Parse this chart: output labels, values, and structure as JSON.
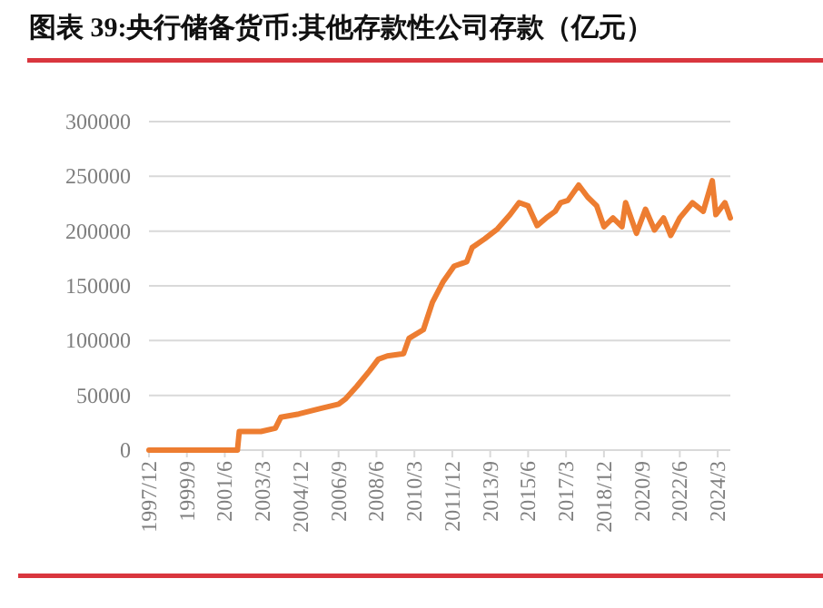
{
  "chart_data": {
    "type": "line",
    "title": "图表 39:央行储备货币:其他存款性公司存款（亿元）",
    "x": [
      "1997-12",
      "2002-01",
      "2002-02",
      "2003-02",
      "2003-10",
      "2004-01",
      "2004-11",
      "2005-11",
      "2006-09",
      "2007-01",
      "2007-07",
      "2008-02",
      "2008-07",
      "2008-12",
      "2009-09",
      "2009-12",
      "2010-08",
      "2011-01",
      "2011-07",
      "2012-01",
      "2012-08",
      "2012-11",
      "2013-06",
      "2014-01",
      "2014-08",
      "2015-01",
      "2015-06",
      "2015-11",
      "2016-04",
      "2016-09",
      "2016-12",
      "2017-04",
      "2017-10",
      "2018-03",
      "2018-08",
      "2018-12",
      "2019-05",
      "2019-10",
      "2019-12",
      "2020-06",
      "2020-11",
      "2021-04",
      "2021-09",
      "2022-01",
      "2022-06",
      "2023-01",
      "2023-07",
      "2023-12",
      "2024-02",
      "2024-07",
      "2024-10"
    ],
    "series": [
      {
        "color": "#ed7d31",
        "values": [
          0,
          0,
          17000,
          17000,
          20000,
          30000,
          33000,
          38000,
          42000,
          47000,
          58000,
          72000,
          83000,
          86000,
          88000,
          102000,
          110000,
          135000,
          154000,
          168000,
          172000,
          185000,
          193000,
          202000,
          215000,
          226000,
          223000,
          205000,
          212000,
          218000,
          226000,
          228000,
          242000,
          231000,
          223000,
          204000,
          212000,
          204000,
          226000,
          198000,
          220000,
          201000,
          212000,
          196000,
          212000,
          226000,
          218000,
          246000,
          215000,
          226000,
          212000
        ]
      }
    ],
    "xlim": [
      "1997-12",
      "2024-10"
    ],
    "xticks": [
      {
        "value": "1997-12",
        "label": "1997/12"
      },
      {
        "value": "1999-09",
        "label": "1999/9"
      },
      {
        "value": "2001-06",
        "label": "2001/6"
      },
      {
        "value": "2003-03",
        "label": "2003/3"
      },
      {
        "value": "2004-12",
        "label": "2004/12"
      },
      {
        "value": "2006-09",
        "label": "2006/9"
      },
      {
        "value": "2008-06",
        "label": "2008/6"
      },
      {
        "value": "2010-03",
        "label": "2010/3"
      },
      {
        "value": "2011-12",
        "label": "2011/12"
      },
      {
        "value": "2013-09",
        "label": "2013/9"
      },
      {
        "value": "2015-06",
        "label": "2015/6"
      },
      {
        "value": "2017-03",
        "label": "2017/3"
      },
      {
        "value": "2018-12",
        "label": "2018/12"
      },
      {
        "value": "2020-09",
        "label": "2020/9"
      },
      {
        "value": "2022-06",
        "label": "2022/6"
      },
      {
        "value": "2024-03",
        "label": "2024/3"
      }
    ],
    "ylim": [
      0,
      300000
    ],
    "yticks": [
      0,
      50000,
      100000,
      150000,
      200000,
      250000,
      300000
    ],
    "grid": "y",
    "marker": "none",
    "line_style": "solid"
  }
}
